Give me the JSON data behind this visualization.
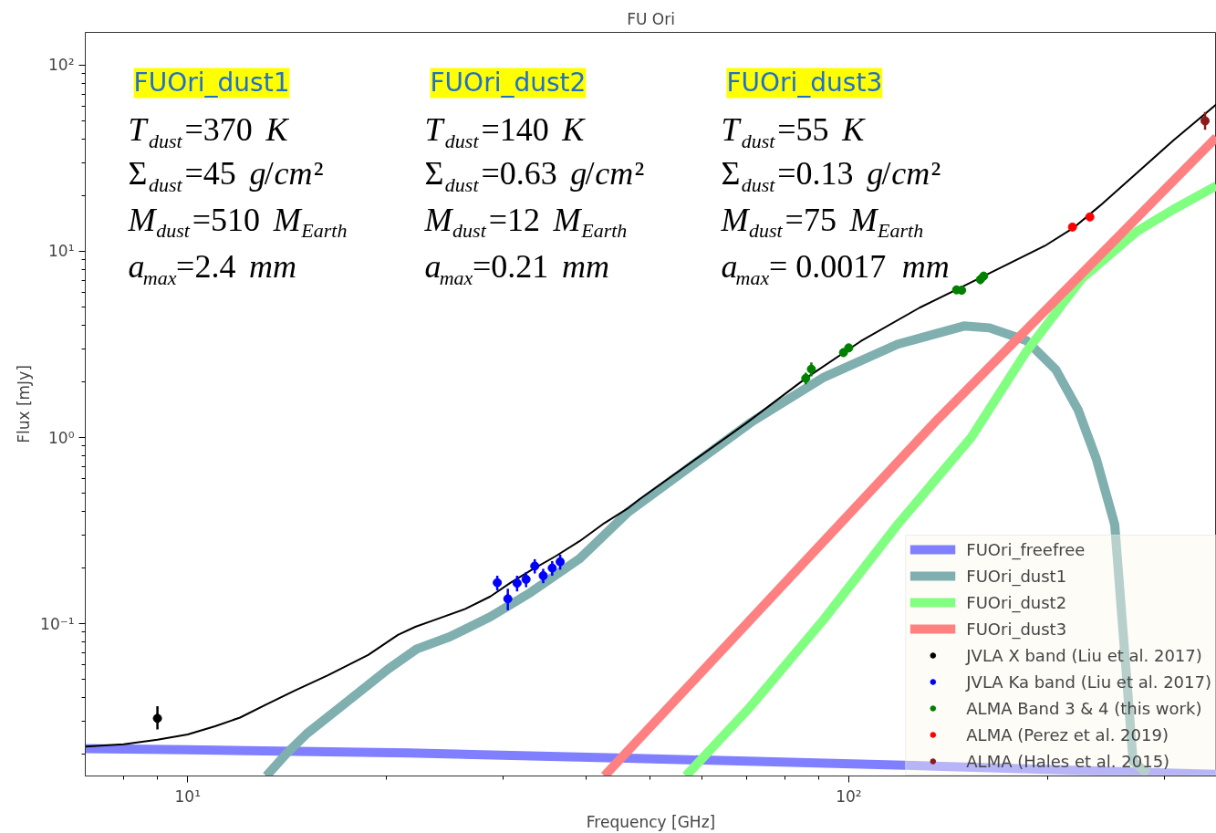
{
  "chart_data": {
    "type": "line",
    "title": "FU Ori",
    "xlabel": "Frequency [GHz]",
    "ylabel": "Flux [mJy]",
    "log": "xy",
    "grid": false,
    "legend": "bottom right",
    "xlim": [
      7.0,
      360
    ],
    "ylim": [
      0.0152,
      150
    ],
    "xticks": [
      {
        "value": 8,
        "label": null
      },
      {
        "value": 9,
        "label": null
      },
      {
        "value": 10,
        "label": "10¹"
      },
      {
        "value": 20,
        "label": null
      },
      {
        "value": 30,
        "label": null
      },
      {
        "value": 40,
        "label": null
      },
      {
        "value": 50,
        "label": null
      },
      {
        "value": 60,
        "label": null
      },
      {
        "value": 70,
        "label": null
      },
      {
        "value": 80,
        "label": null
      },
      {
        "value": 90,
        "label": null
      },
      {
        "value": 100,
        "label": "10²"
      },
      {
        "value": 200,
        "label": null
      },
      {
        "value": 300,
        "label": null
      }
    ],
    "yticks": [
      {
        "value": 0.02,
        "label": null
      },
      {
        "value": 0.03,
        "label": null
      },
      {
        "value": 0.04,
        "label": null
      },
      {
        "value": 0.05,
        "label": null
      },
      {
        "value": 0.06,
        "label": null
      },
      {
        "value": 0.07,
        "label": null
      },
      {
        "value": 0.08,
        "label": null
      },
      {
        "value": 0.09,
        "label": null
      },
      {
        "value": 0.1,
        "label": "10⁻¹"
      },
      {
        "value": 0.2,
        "label": null
      },
      {
        "value": 0.3,
        "label": null
      },
      {
        "value": 0.4,
        "label": null
      },
      {
        "value": 0.5,
        "label": null
      },
      {
        "value": 0.6,
        "label": null
      },
      {
        "value": 0.7,
        "label": null
      },
      {
        "value": 0.8,
        "label": null
      },
      {
        "value": 0.9,
        "label": null
      },
      {
        "value": 1,
        "label": "10⁰"
      },
      {
        "value": 2,
        "label": null
      },
      {
        "value": 3,
        "label": null
      },
      {
        "value": 4,
        "label": null
      },
      {
        "value": 5,
        "label": null
      },
      {
        "value": 6,
        "label": null
      },
      {
        "value": 7,
        "label": null
      },
      {
        "value": 8,
        "label": null
      },
      {
        "value": 9,
        "label": null
      },
      {
        "value": 10,
        "label": "10¹"
      },
      {
        "value": 20,
        "label": null
      },
      {
        "value": 30,
        "label": null
      },
      {
        "value": 40,
        "label": null
      },
      {
        "value": 50,
        "label": null
      },
      {
        "value": 60,
        "label": null
      },
      {
        "value": 70,
        "label": null
      },
      {
        "value": 80,
        "label": null
      },
      {
        "value": 90,
        "label": null
      },
      {
        "value": 100,
        "label": "10²"
      }
    ],
    "annotations": [
      "FUOri_dust1",
      "T$_{dust}$=370 K",
      "Σ$_{dust}$=45 g/cm²",
      "M$_{dust}$=510 M$_{Earth}$",
      "a$_{max}$=2.4 mm",
      "FUOri_dust2",
      "T$_{dust}$=140 K",
      "Σ$_{dust}$=0.63 g/cm²",
      "M$_{dust}$=12 M$_{Earth}$",
      "a$_{max}$=0.21 mm",
      "FUOri_dust3",
      "T$_{dust}$=55 K",
      "Σ$_{dust}$=0.13 g/cm²",
      "M$_{dust}$=75 M$_{Earth}$",
      "a$_{max}$= 0.0017 mm"
    ],
    "series": [
      {
        "color": "#7f7fff",
        "name": "FUOri_freefree",
        "x": [
          7.0,
          10,
          21.6,
          47.7,
          125.3,
          360
        ],
        "values": [
          0.0213,
          0.021,
          0.0202,
          0.0189,
          0.0173,
          0.0155
        ]
      },
      {
        "color": "#7fafaf",
        "name": "FUOri_dust1",
        "x": [
          13.15,
          14.1,
          15.15,
          17.46,
          20.1,
          22.2,
          24.9,
          28.7,
          33.0,
          39.2,
          46.4,
          71.0,
          91.8,
          118.6,
          149.4,
          163.3,
          185.7,
          205.8,
          222.3,
          236.9,
          252.6,
          269.3,
          283.4
        ],
        "values": [
          0.0152,
          0.02,
          0.0257,
          0.0383,
          0.057,
          0.0731,
          0.0849,
          0.109,
          0.147,
          0.224,
          0.398,
          1.2,
          2.11,
          3.17,
          3.97,
          3.88,
          3.32,
          2.31,
          1.41,
          0.767,
          0.34,
          0.0182,
          0.0156
        ]
      },
      {
        "color": "#80ff80",
        "name": "FUOri_dust2",
        "x": [
          56.7,
          71.0,
          91.8,
          118.6,
          153.2,
          185.7,
          225.1,
          272.9,
          310,
          360
        ],
        "values": [
          0.0152,
          0.0358,
          0.106,
          0.341,
          1.0,
          2.9,
          7.13,
          12.8,
          16.8,
          22.5
        ]
      },
      {
        "color": "#ff8080",
        "name": "FUOri_dust3",
        "x": [
          42.7,
          134.8,
          360
        ],
        "values": [
          0.0152,
          1.2,
          41.0
        ]
      },
      {
        "color": "#000000",
        "x": [
          7.01,
          8.0,
          9.0,
          10.0,
          11.0,
          12.0,
          13.15,
          14.5,
          16.3,
          18.75,
          20.8,
          22.1,
          23.5,
          26.3,
          28.7,
          30.8,
          33.0,
          36.0,
          39.2,
          42.7,
          46.4,
          48.3,
          70.1,
          86.1,
          104.3,
          128,
          145.6,
          174.2,
          198,
          219,
          240,
          272.9,
          310,
          360
        ],
        "values": [
          0.0219,
          0.0225,
          0.0238,
          0.0254,
          0.0281,
          0.0313,
          0.0368,
          0.0436,
          0.0528,
          0.0679,
          0.0871,
          0.0962,
          0.104,
          0.12,
          0.14,
          0.166,
          0.193,
          0.23,
          0.278,
          0.347,
          0.418,
          0.467,
          1.2,
          2.08,
          3.29,
          4.98,
          6.23,
          8.55,
          10.7,
          13.4,
          17.6,
          26.4,
          39.5,
          61.7
        ]
      },
      {
        "type": "scatter",
        "marker": "circle",
        "color": "#000000",
        "name": "JVLA X band (Liu et al. 2017)",
        "x": [
          9.0
        ],
        "values": [
          0.031
        ],
        "errors": [
          [
            0.027,
            0.036
          ]
        ]
      },
      {
        "type": "scatter",
        "marker": "circle",
        "color": "#0000ff",
        "name": "JVLA Ka band (Liu et al. 2017)",
        "x": [
          29.4,
          30.5,
          31.5,
          32.5,
          33.5,
          34.5,
          35.6,
          36.6
        ],
        "values": [
          0.166,
          0.136,
          0.165,
          0.173,
          0.204,
          0.181,
          0.199,
          0.215
        ],
        "errors": [
          0.015,
          0.018,
          0.016,
          0.016,
          0.018,
          0.016,
          0.018,
          0.02
        ]
      },
      {
        "type": "scatter",
        "marker": "circle",
        "color": "#008000",
        "name": "ALMA Band 3 & 4 (this work)",
        "x": [
          86.1,
          87.8,
          98.2,
          100,
          145.6,
          148.2,
          158.2,
          160
        ],
        "values": [
          2.08,
          2.33,
          2.86,
          3.03,
          6.21,
          6.18,
          7.06,
          7.36
        ],
        "errors": [
          0.15,
          0.2,
          0.15,
          0.15,
          0.3,
          0.3,
          0.4,
          0.4
        ]
      },
      {
        "type": "scatter",
        "marker": "circle",
        "color": "#ff0000",
        "name": "ALMA (Perez et al. 2019)",
        "x": [
          218,
          231.6
        ],
        "values": [
          13.5,
          15.3
        ]
      },
      {
        "type": "scatter",
        "marker": "circle",
        "color": "#8b1a1a",
        "name": "ALMA (Hales et al. 2015)",
        "x": [
          346
        ],
        "values": [
          50.2
        ],
        "errors": [
          [
            45,
            56
          ]
        ]
      }
    ]
  }
}
